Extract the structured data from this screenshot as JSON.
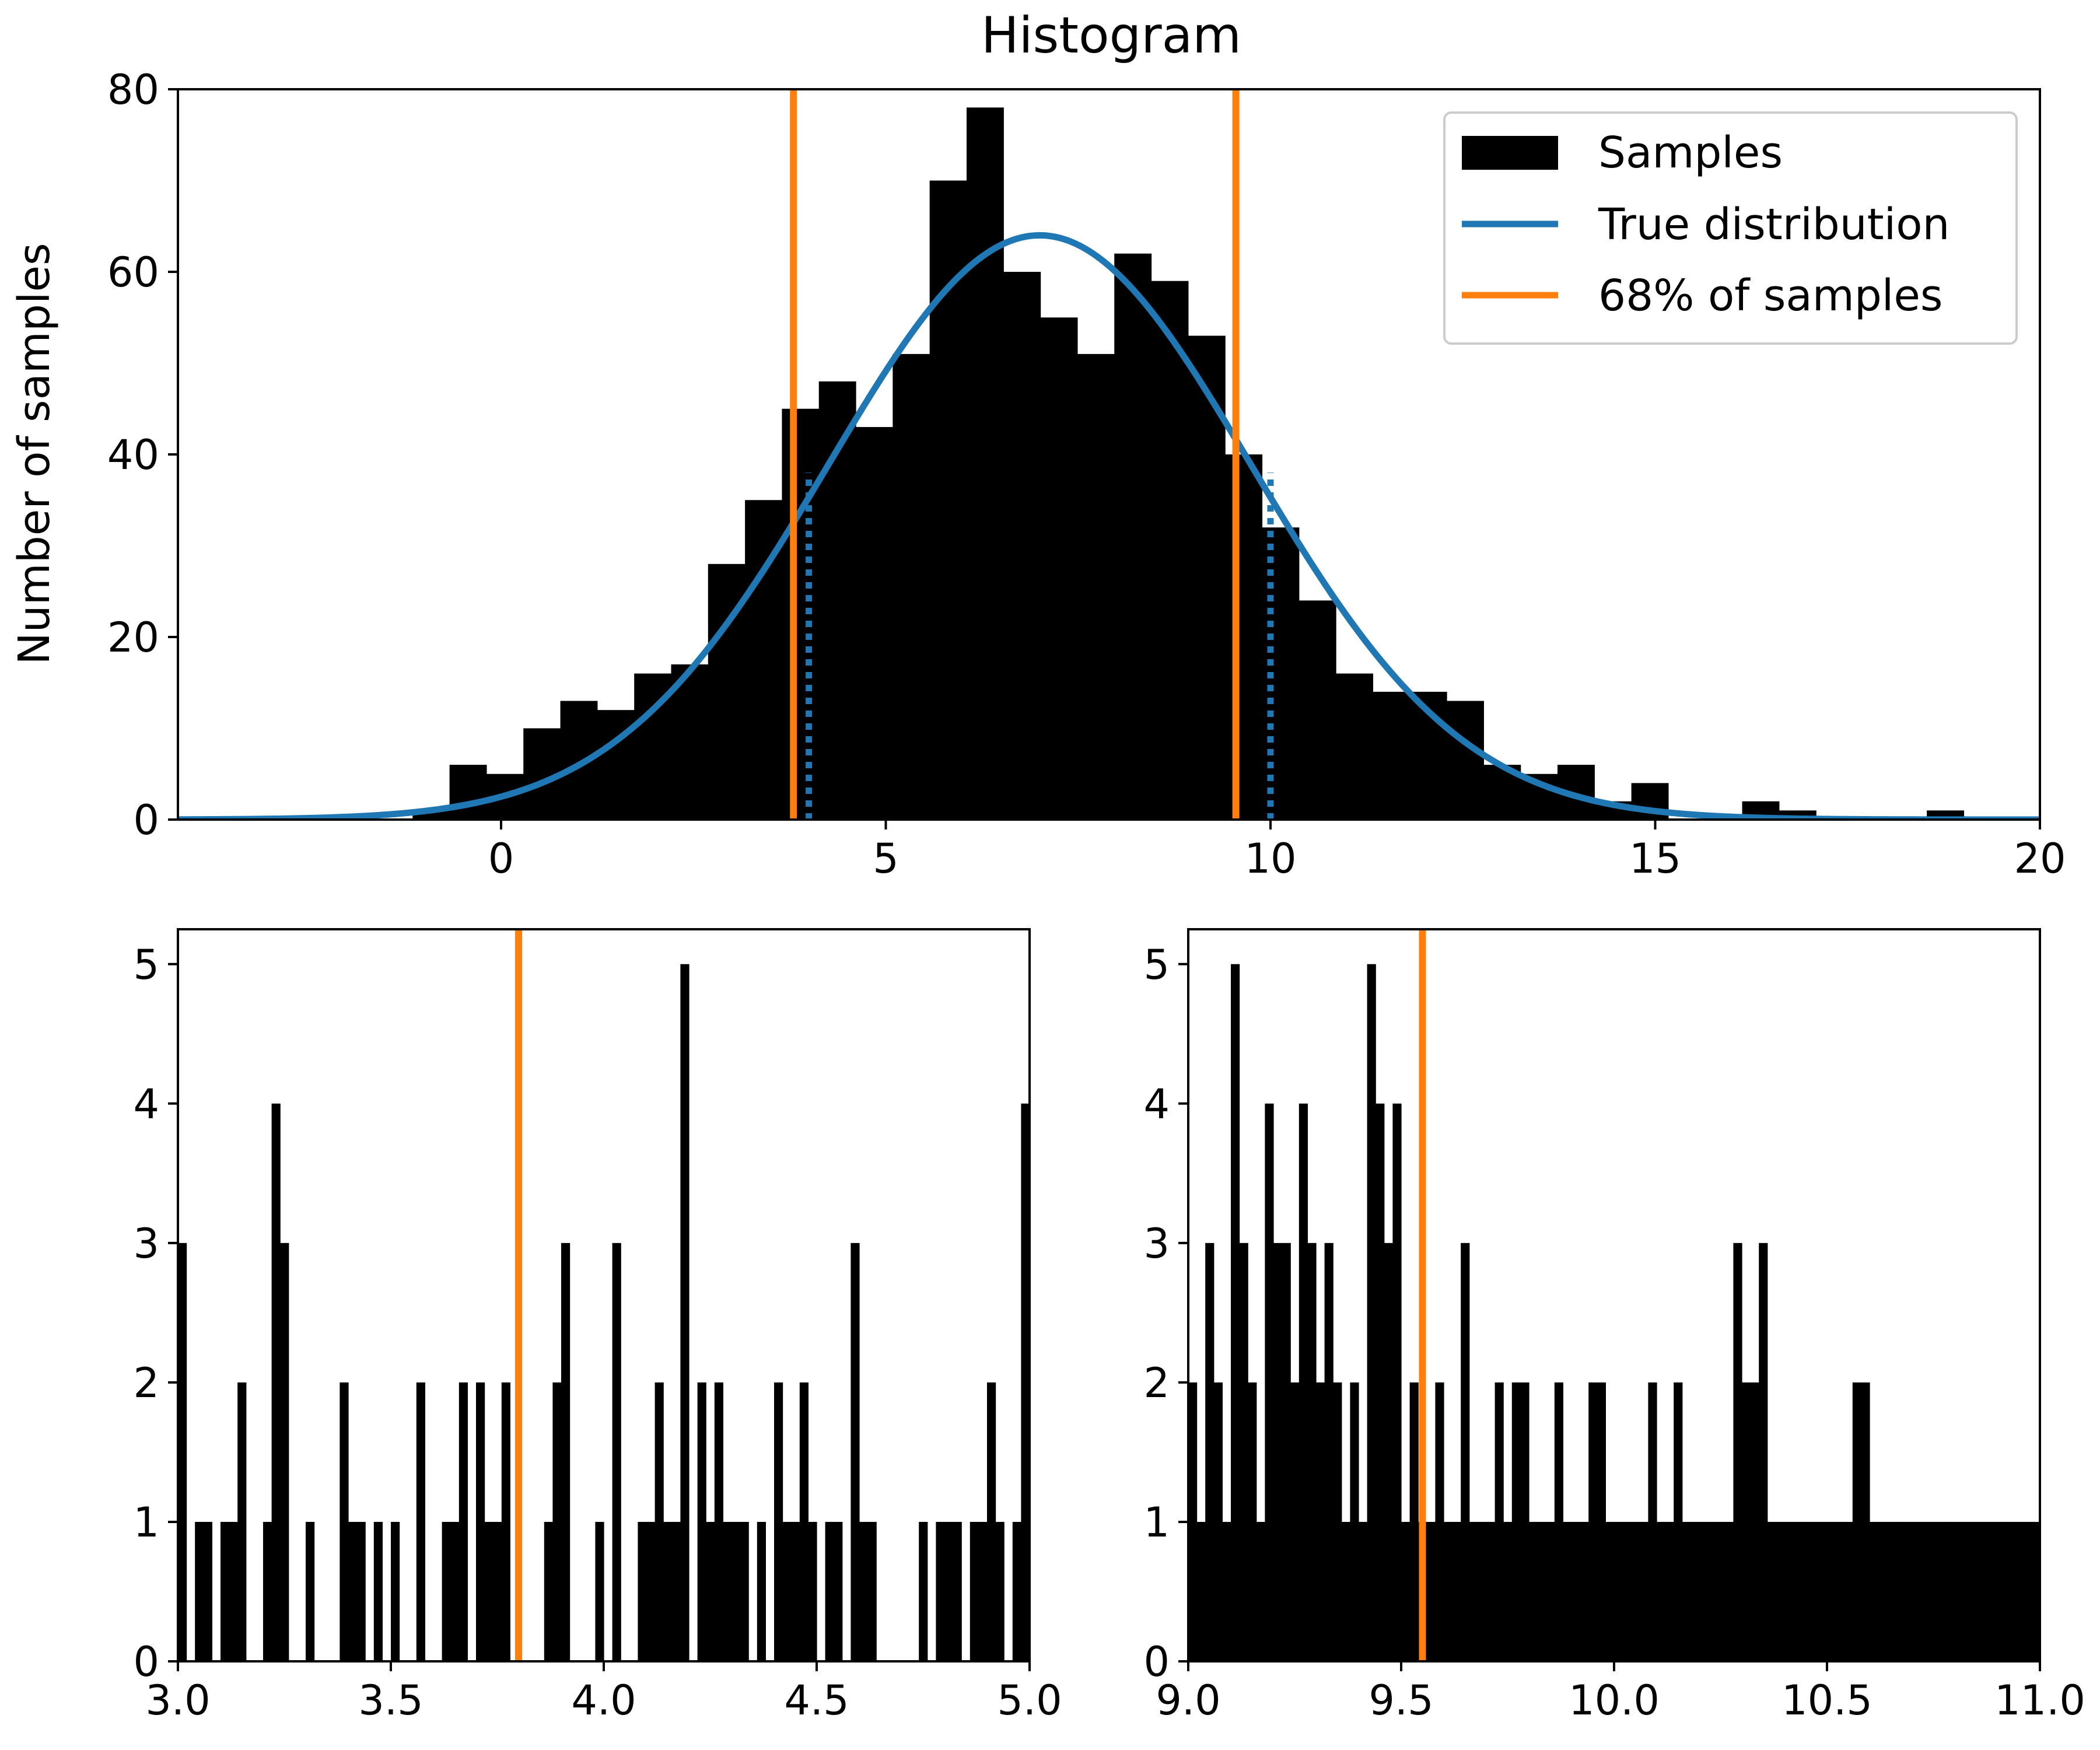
{
  "colors": {
    "samples": "#000000",
    "true_distribution": "#1f77b4",
    "percentile": "#ff7f0e",
    "axes": "#000000",
    "legend_border": "#cccccc"
  },
  "chart_data": [
    {
      "type": "bar",
      "title": "Histogram",
      "xlabel": "",
      "ylabel": "Number of samples",
      "xlim": [
        -4.2,
        20
      ],
      "ylim": [
        0,
        80
      ],
      "xticks": [
        0,
        5,
        10,
        15,
        20
      ],
      "xtick_labels": [
        "0",
        "5",
        "10",
        "15",
        "20"
      ],
      "yticks": [
        0,
        20,
        40,
        60,
        80
      ],
      "ytick_labels": [
        "0",
        "20",
        "40",
        "60",
        "80"
      ],
      "grid": false,
      "legend_position": "top-right",
      "histogram": {
        "name": "Samples",
        "bin_start": -1.15,
        "bin_width": 0.48,
        "counts": [
          1,
          6,
          5,
          10,
          13,
          12,
          16,
          17,
          28,
          35,
          45,
          48,
          43,
          51,
          70,
          78,
          60,
          55,
          51,
          62,
          59,
          53,
          40,
          32,
          24,
          16,
          14,
          14,
          13,
          6,
          5,
          6,
          2,
          4,
          0,
          0,
          2,
          1,
          0,
          0,
          0,
          1,
          0
        ]
      },
      "true_distribution": {
        "name": "True distribution",
        "mean": 7.0,
        "std": 2.75,
        "peak": 64
      },
      "percentile_lines": {
        "name": "68% of samples",
        "values": [
          3.8,
          9.55
        ]
      },
      "true_interval": {
        "values": [
          4.0,
          10.0
        ],
        "heights": [
          38,
          38
        ]
      },
      "legend": [
        "Samples",
        "True distribution",
        "68% of samples"
      ]
    },
    {
      "type": "bar",
      "title": "",
      "xlabel": "",
      "ylabel": "",
      "xlim": [
        3.0,
        5.0
      ],
      "ylim": [
        0,
        5.25
      ],
      "xticks": [
        3.0,
        3.5,
        4.0,
        4.5,
        5.0
      ],
      "xtick_labels": [
        "3.0",
        "3.5",
        "4.0",
        "4.5",
        "5.0"
      ],
      "yticks": [
        0,
        1,
        2,
        3,
        4,
        5
      ],
      "ytick_labels": [
        "0",
        "1",
        "2",
        "3",
        "4",
        "5"
      ],
      "histogram": {
        "bin_start": 3.0,
        "bin_width": 0.02,
        "counts": [
          3,
          0,
          1,
          1,
          0,
          1,
          1,
          2,
          0,
          0,
          1,
          4,
          3,
          0,
          0,
          1,
          0,
          0,
          0,
          2,
          1,
          1,
          0,
          1,
          0,
          1,
          0,
          0,
          2,
          0,
          0,
          1,
          1,
          2,
          0,
          2,
          1,
          1,
          2,
          0,
          0,
          0,
          0,
          1,
          2,
          3,
          0,
          0,
          0,
          1,
          0,
          3,
          0,
          0,
          1,
          1,
          2,
          1,
          1,
          5,
          0,
          2,
          1,
          2,
          1,
          1,
          1,
          0,
          1,
          0,
          2,
          1,
          1,
          2,
          1,
          0,
          1,
          1,
          0,
          3,
          1,
          1,
          0,
          0,
          0,
          0,
          0,
          1,
          0,
          1,
          1,
          1,
          0,
          1,
          1,
          2,
          1,
          0,
          1,
          4
        ]
      },
      "percentile_lines": {
        "values": [
          3.8
        ]
      }
    },
    {
      "type": "bar",
      "title": "",
      "xlabel": "",
      "ylabel": "",
      "xlim": [
        9.0,
        11.0
      ],
      "ylim": [
        0,
        5.25
      ],
      "xticks": [
        9.0,
        9.5,
        10.0,
        10.5,
        11.0
      ],
      "xtick_labels": [
        "9.0",
        "9.5",
        "10.0",
        "10.5",
        "11.0"
      ],
      "yticks": [
        0,
        1,
        2,
        3,
        4,
        5
      ],
      "ytick_labels": [
        "0",
        "1",
        "2",
        "3",
        "4",
        "5"
      ],
      "histogram": {
        "bin_start": 9.0,
        "bin_width": 0.02,
        "counts": [
          2,
          1,
          3,
          2,
          1,
          5,
          3,
          2,
          1,
          4,
          3,
          3,
          2,
          4,
          3,
          2,
          3,
          2,
          1,
          2,
          1,
          5,
          4,
          3,
          4,
          1,
          2,
          1,
          1,
          2,
          1,
          1,
          3,
          1,
          1,
          1,
          2,
          1,
          2,
          2,
          1,
          1,
          1,
          2,
          1,
          1,
          1,
          2,
          2,
          1,
          1,
          1,
          1,
          1,
          2,
          1,
          1,
          2,
          1,
          1,
          1,
          1,
          1,
          1,
          3,
          2,
          2,
          3,
          1,
          1,
          1,
          1,
          1,
          1,
          1,
          1,
          1,
          1,
          2,
          2,
          1,
          1,
          1,
          1,
          1,
          1,
          1,
          1,
          1,
          1,
          1,
          1,
          1,
          1,
          1,
          1,
          1,
          1,
          1,
          1
        ]
      },
      "percentile_lines": {
        "values": [
          9.55
        ]
      }
    }
  ]
}
